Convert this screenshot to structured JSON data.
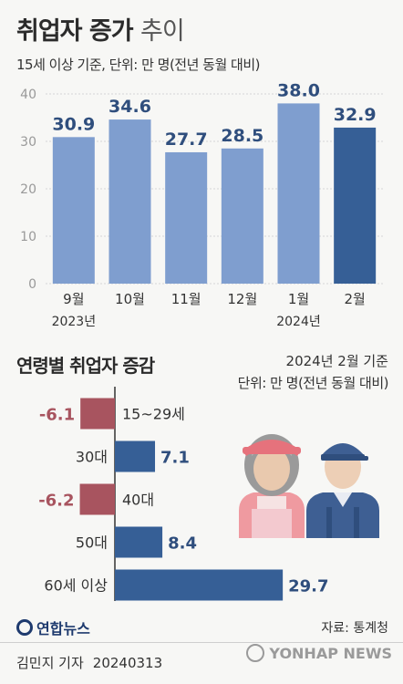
{
  "header": {
    "title_bold": "취업자 증가",
    "title_light": "추이",
    "subtitle": "15세 이상 기준, 단위: 만 명(전년 동월 대비)"
  },
  "chart_data": [
    {
      "type": "bar",
      "categories": [
        "9월",
        "10월",
        "11월",
        "12월",
        "1월",
        "2월"
      ],
      "year_labels": [
        "2023년",
        "",
        "",
        "",
        "2024년",
        ""
      ],
      "values": [
        30.9,
        34.6,
        27.7,
        28.5,
        38.0,
        32.9
      ],
      "value_labels": [
        "30.9",
        "34.6",
        "27.7",
        "28.5",
        "38.0",
        "32.9"
      ],
      "yticks": [
        "0",
        "10",
        "20",
        "30",
        "40"
      ],
      "ylim": [
        0,
        40
      ],
      "colors": {
        "default": "#7f9ecf",
        "highlight": "#365f96"
      },
      "highlight_index": 5
    },
    {
      "type": "bar",
      "orientation": "horizontal",
      "title": "연령별 취업자 증감",
      "date_note": "2024년 2월 기준",
      "unit_note": "단위: 만 명(전년 동월 대비)",
      "categories": [
        "15~29세",
        "30대",
        "40대",
        "50대",
        "60세 이상"
      ],
      "values": [
        -6.1,
        7.1,
        -6.2,
        8.4,
        29.7
      ],
      "value_labels": [
        "-6.1",
        "7.1",
        "-6.2",
        "8.4",
        "29.7"
      ],
      "colors": {
        "positive": "#365f96",
        "negative": "#a8545f"
      }
    }
  ],
  "footer": {
    "logo_text": "연합뉴스",
    "source": "자료: 통계청",
    "author": "김민지 기자",
    "date": "20240313",
    "watermark": "YONHAP NEWS"
  }
}
